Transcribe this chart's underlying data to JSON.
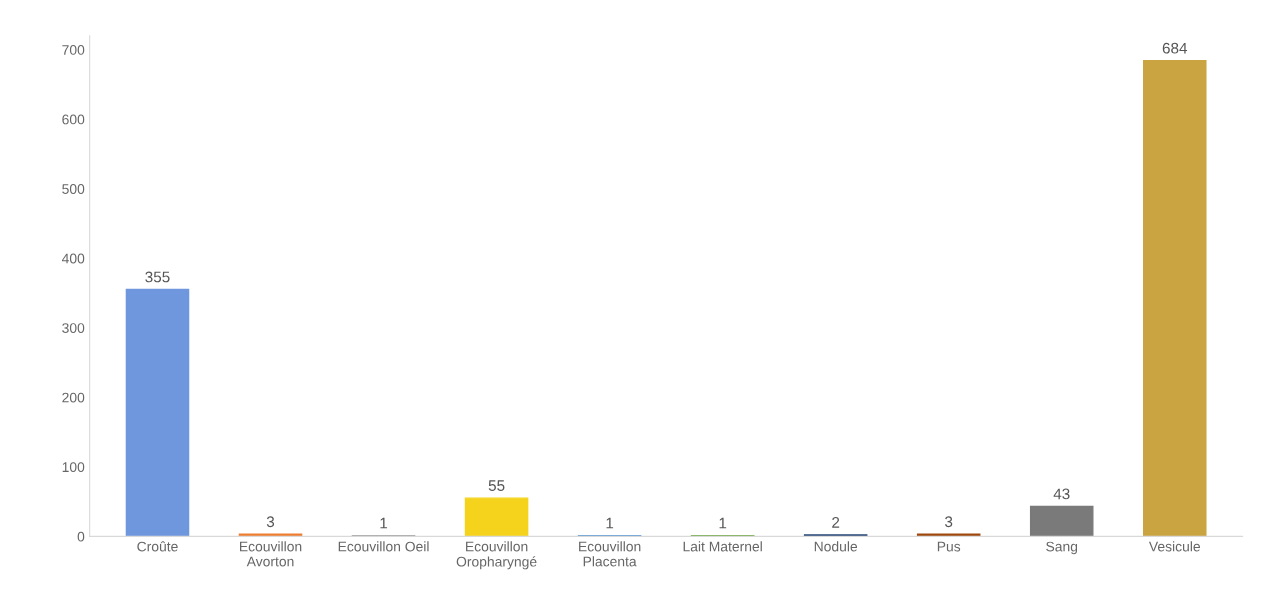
{
  "chart_data": {
    "type": "bar",
    "categories": [
      "Croûte",
      "Ecouvillon\nAvorton",
      "Ecouvillon Oeil",
      "Ecouvillon\nOropharyngé",
      "Ecouvillon\nPlacenta",
      "Lait Maternel",
      "Nodule",
      "Pus",
      "Sang",
      "Vesicule"
    ],
    "values": [
      355,
      3,
      1,
      55,
      1,
      1,
      2,
      3,
      43,
      684
    ],
    "colors": [
      "#6f97de",
      "#ed7d31",
      "#a5a5a5",
      "#f5d31d",
      "#5b9bd5",
      "#70ad47",
      "#264478",
      "#9e480e",
      "#7a7a7a",
      "#c9a440"
    ],
    "ylim": [
      0,
      720
    ],
    "yticks": [
      0,
      100,
      200,
      300,
      400,
      500,
      600,
      700
    ],
    "data_labels": true,
    "grid": false,
    "legend": false
  }
}
